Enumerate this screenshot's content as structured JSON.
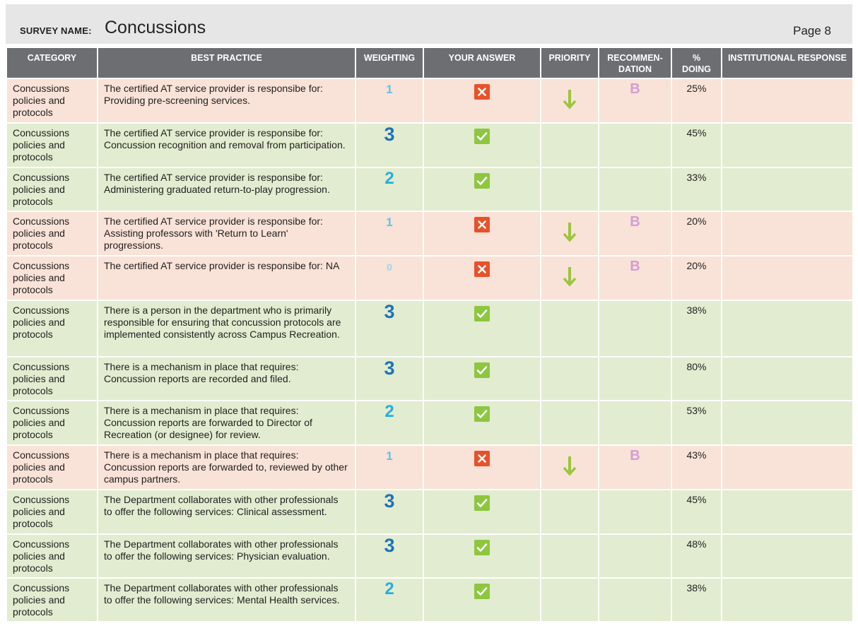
{
  "header": {
    "survey_label": "SURVEY NAME:",
    "survey_name": "Concussions",
    "page": "Page 8"
  },
  "columns": [
    "CATEGORY",
    "BEST PRACTICE",
    "WEIGHTING",
    "YOUR ANSWER",
    "PRIORITY",
    "RECOMMEN-\nDATION",
    "%\nDOING",
    "INSTITUTIONAL RESPONSE"
  ],
  "colors": {
    "header_bg": "#6d6e71",
    "row_no_bg": "#f9e2d7",
    "row_yes_bg": "#e2ecd0",
    "check_green": "#8dc63f",
    "x_orange": "#e8522a",
    "arrow_green": "#9bc53d",
    "rec_pink": "#d39dd6"
  },
  "rows": [
    {
      "category": "Concussions policies and protocols",
      "practice": "The certified AT service provider is responsibe for: Providing pre-screening services.",
      "weighting": "1",
      "answer": "no",
      "answer_icon": "x-icon",
      "priority": "down-arrow-icon",
      "recommendation": "B",
      "pct": "25%",
      "response": ""
    },
    {
      "category": "Concussions policies and protocols",
      "practice": "The certified AT service provider is responsibe for: Concussion recognition and removal from participation.",
      "weighting": "3",
      "answer": "yes",
      "answer_icon": "check-icon",
      "priority": "",
      "recommendation": "",
      "pct": "45%",
      "response": ""
    },
    {
      "category": "Concussions policies and protocols",
      "practice": "The certified AT service provider is responsibe for: Administering graduated return-to-play progression.",
      "weighting": "2",
      "answer": "yes",
      "answer_icon": "check-icon",
      "priority": "",
      "recommendation": "",
      "pct": "33%",
      "response": ""
    },
    {
      "category": "Concussions policies and protocols",
      "practice": "The certified AT service provider is responsibe for: Assisting professors with 'Return to Learn' progressions.",
      "weighting": "1",
      "answer": "no",
      "answer_icon": "x-icon",
      "priority": "down-arrow-icon",
      "recommendation": "B",
      "pct": "20%",
      "response": ""
    },
    {
      "category": "Concussions policies and protocols",
      "practice": "The certified AT service provider is responsibe for: NA",
      "weighting": "0",
      "answer": "no",
      "answer_icon": "x-icon",
      "priority": "down-arrow-icon",
      "recommendation": "B",
      "pct": "20%",
      "response": ""
    },
    {
      "category": "Concussions policies and protocols",
      "practice": "There is a person in the department who is primarily responsible for ensuring that concussion protocols are implemented consistently across Campus Recreation.",
      "weighting": "3",
      "answer": "yes",
      "answer_icon": "check-icon",
      "priority": "",
      "recommendation": "",
      "pct": "38%",
      "response": ""
    },
    {
      "category": "Concussions policies and protocols",
      "practice": "There is a mechanism in place that requires: Concussion reports are recorded and filed.",
      "weighting": "3",
      "answer": "yes",
      "answer_icon": "check-icon",
      "priority": "",
      "recommendation": "",
      "pct": "80%",
      "response": ""
    },
    {
      "category": "Concussions policies and protocols",
      "practice": "There is a mechanism in place that requires: Concussion reports are forwarded to Director of Recreation (or designee) for review.",
      "weighting": "2",
      "answer": "yes",
      "answer_icon": "check-icon",
      "priority": "",
      "recommendation": "",
      "pct": "53%",
      "response": ""
    },
    {
      "category": "Concussions policies and protocols",
      "practice": "There is a mechanism in place that requires: Concussion reports are forwarded to, reviewed by other campus partners.",
      "weighting": "1",
      "answer": "no",
      "answer_icon": "x-icon",
      "priority": "down-arrow-icon",
      "recommendation": "B",
      "pct": "43%",
      "response": ""
    },
    {
      "category": "Concussions policies and protocols",
      "practice": "The Department collaborates with other professionals to offer the following services: Clinical assessment.",
      "weighting": "3",
      "answer": "yes",
      "answer_icon": "check-icon",
      "priority": "",
      "recommendation": "",
      "pct": "45%",
      "response": ""
    },
    {
      "category": "Concussions policies and protocols",
      "practice": "The Department collaborates with other professionals to offer the following services: Physician evaluation.",
      "weighting": "3",
      "answer": "yes",
      "answer_icon": "check-icon",
      "priority": "",
      "recommendation": "",
      "pct": "48%",
      "response": ""
    },
    {
      "category": "Concussions policies and protocols",
      "practice": "The Department collaborates with other professionals to offer the following services: Mental Health services.",
      "weighting": "2",
      "answer": "yes",
      "answer_icon": "check-icon",
      "priority": "",
      "recommendation": "",
      "pct": "38%",
      "response": ""
    }
  ]
}
